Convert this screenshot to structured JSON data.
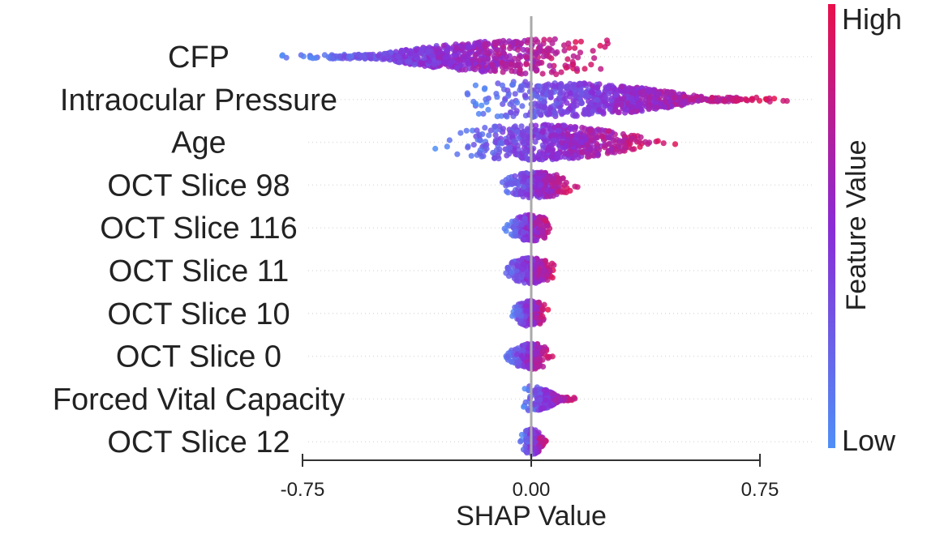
{
  "chart_data": {
    "type": "scatter",
    "subtype": "shap-beeswarm-summary",
    "title": "",
    "xlabel": "SHAP Value",
    "xlim": [
      -0.85,
      0.95
    ],
    "xticks": [
      -0.75,
      0.0,
      0.75
    ],
    "xtick_labels": [
      "-0.75",
      "0.00",
      "0.75"
    ],
    "colorbar": {
      "title": "Feature Value",
      "high_label": "High",
      "low_label": "Low",
      "low_color": "#4f8ff7",
      "mid_color": "#8a2bd6",
      "high_color": "#e8104a"
    },
    "zero_line_color": "#aaaaaa",
    "features": [
      {
        "name": "CFP",
        "min": -0.9,
        "max": 0.35,
        "median": 0.08
      },
      {
        "name": "Intraocular Pressure",
        "min": -0.32,
        "max": 0.9,
        "median": 0.0
      },
      {
        "name": "Age",
        "min": -0.35,
        "max": 0.52,
        "median": 0.0
      },
      {
        "name": "OCT Slice 98",
        "min": -0.13,
        "max": 0.17,
        "median": 0.02
      },
      {
        "name": "OCT Slice 116",
        "min": -0.1,
        "max": 0.09,
        "median": 0.0
      },
      {
        "name": "OCT Slice 11",
        "min": -0.11,
        "max": 0.1,
        "median": 0.0
      },
      {
        "name": "OCT Slice 10",
        "min": -0.08,
        "max": 0.07,
        "median": 0.0
      },
      {
        "name": "OCT Slice 0",
        "min": -0.1,
        "max": 0.08,
        "median": 0.0
      },
      {
        "name": "Forced Vital Capacity",
        "min": -0.05,
        "max": 0.17,
        "median": -0.01
      },
      {
        "name": "OCT Slice 12",
        "min": -0.04,
        "max": 0.06,
        "median": 0.0
      }
    ]
  }
}
